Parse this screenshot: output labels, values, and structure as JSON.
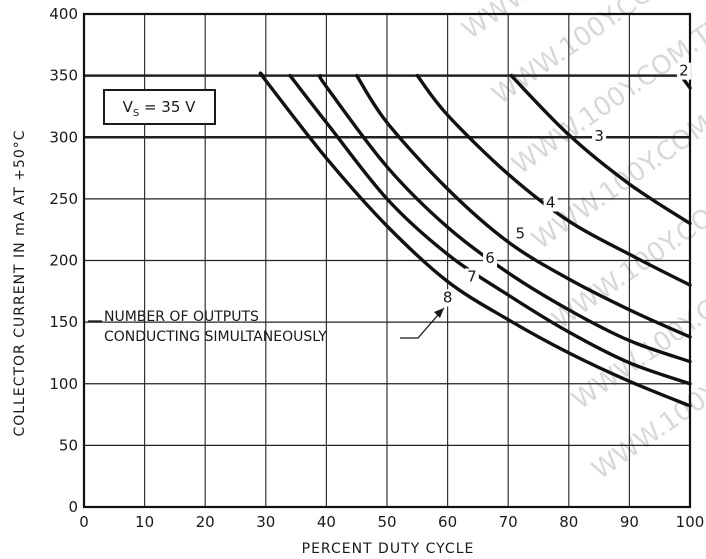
{
  "watermark": "WWW.100Y.COM.TW",
  "chart_data": {
    "type": "line",
    "xlabel": "PERCENT DUTY CYCLE",
    "ylabel": "COLLECTOR CURRENT IN mA AT +50°C",
    "xlim": [
      0,
      100
    ],
    "ylim": [
      0,
      400
    ],
    "x_ticks": [
      "0",
      "10",
      "20",
      "30",
      "40",
      "50",
      "60",
      "70",
      "80",
      "90",
      "100"
    ],
    "y_ticks": [
      "0",
      "50",
      "100",
      "150",
      "200",
      "250",
      "300",
      "350",
      "400"
    ],
    "grid": true,
    "condition_box": {
      "prefix": "V",
      "subscript": "S",
      "suffix": " = 35 V"
    },
    "annotation": [
      "NUMBER OF OUTPUTS",
      "CONDUCTING SIMULTANEOUSLY"
    ],
    "series": [
      {
        "name": "2",
        "label_at": [
          99,
          350
        ],
        "points": [
          [
            98.5,
            350
          ],
          [
            100,
            340
          ]
        ]
      },
      {
        "name": "3",
        "label_at": [
          85,
          297
        ],
        "points": [
          [
            70.5,
            350
          ],
          [
            80,
            302
          ],
          [
            90,
            262
          ],
          [
            100,
            230
          ]
        ]
      },
      {
        "name": "4",
        "label_at": [
          77,
          243
        ],
        "points": [
          [
            55,
            350
          ],
          [
            60,
            318
          ],
          [
            70,
            270
          ],
          [
            80,
            232
          ],
          [
            90,
            205
          ],
          [
            100,
            180
          ]
        ]
      },
      {
        "name": "5",
        "label_at": [
          72,
          218
        ],
        "points": [
          [
            45,
            350
          ],
          [
            50,
            312
          ],
          [
            60,
            258
          ],
          [
            70,
            215
          ],
          [
            80,
            185
          ],
          [
            90,
            160
          ],
          [
            100,
            138
          ]
        ]
      },
      {
        "name": "6",
        "label_at": [
          67,
          198
        ],
        "points": [
          [
            39,
            350
          ],
          [
            40,
            341
          ],
          [
            50,
            276
          ],
          [
            60,
            227
          ],
          [
            70,
            190
          ],
          [
            80,
            160
          ],
          [
            90,
            135
          ],
          [
            100,
            118
          ]
        ]
      },
      {
        "name": "7",
        "label_at": [
          64,
          183
        ],
        "points": [
          [
            34,
            350
          ],
          [
            40,
            312
          ],
          [
            50,
            250
          ],
          [
            60,
            205
          ],
          [
            70,
            172
          ],
          [
            80,
            142
          ],
          [
            90,
            117
          ],
          [
            100,
            100
          ]
        ]
      },
      {
        "name": "8",
        "label_at": [
          60,
          166
        ],
        "points": [
          [
            29.5,
            350
          ],
          [
            30,
            346
          ],
          [
            40,
            283
          ],
          [
            50,
            228
          ],
          [
            60,
            183
          ],
          [
            70,
            152
          ],
          [
            80,
            125
          ],
          [
            90,
            102
          ],
          [
            100,
            82
          ]
        ]
      }
    ]
  }
}
